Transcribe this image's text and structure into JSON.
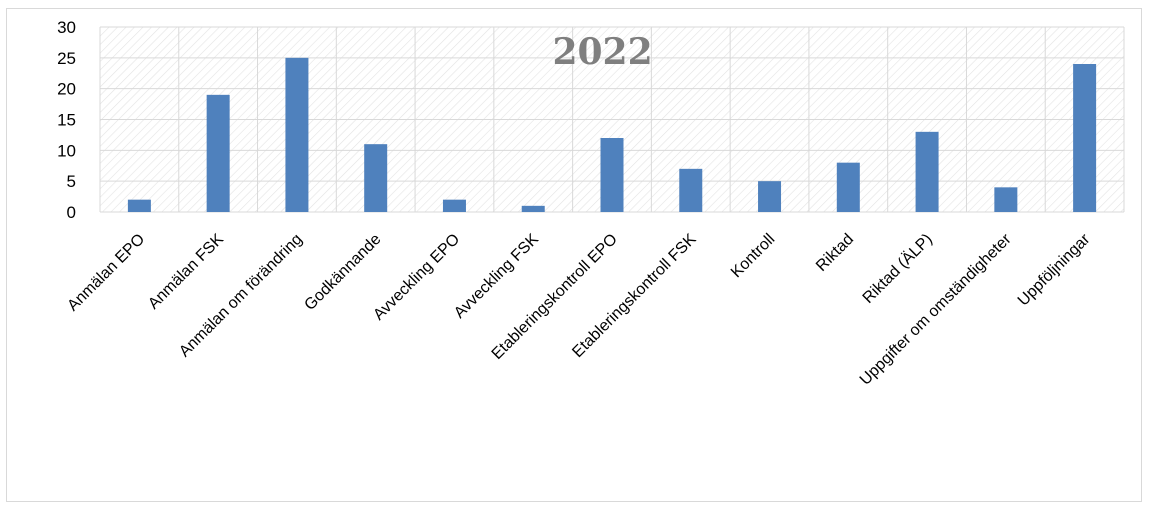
{
  "chart_data": {
    "type": "bar",
    "title": "2022",
    "xlabel": "",
    "ylabel": "",
    "ylim": [
      0,
      30
    ],
    "yticks": [
      0,
      5,
      10,
      15,
      20,
      25,
      30
    ],
    "grid": true,
    "legend": "none",
    "categories": [
      "Anmälan EPO",
      "Anmälan FSK",
      "Anmälan om förändring",
      "Godkännande",
      "Avveckling EPO",
      "Avveckling FSK",
      "Etableringskontroll EPO",
      "Etableringskontroll FSK",
      "Kontroll",
      "Riktad",
      "Riktad (ÄLP)",
      "Uppgifter om omständigheter",
      "Uppföljningar"
    ],
    "series": [
      {
        "values": [
          2,
          19,
          25,
          11,
          2,
          1,
          12,
          7,
          5,
          8,
          13,
          4,
          24
        ]
      }
    ],
    "colors": {
      "bar": "#4f81bd",
      "grid": "#d9d9d9",
      "hatch": "#e6e6e6",
      "title": "#7f7f7f"
    }
  }
}
